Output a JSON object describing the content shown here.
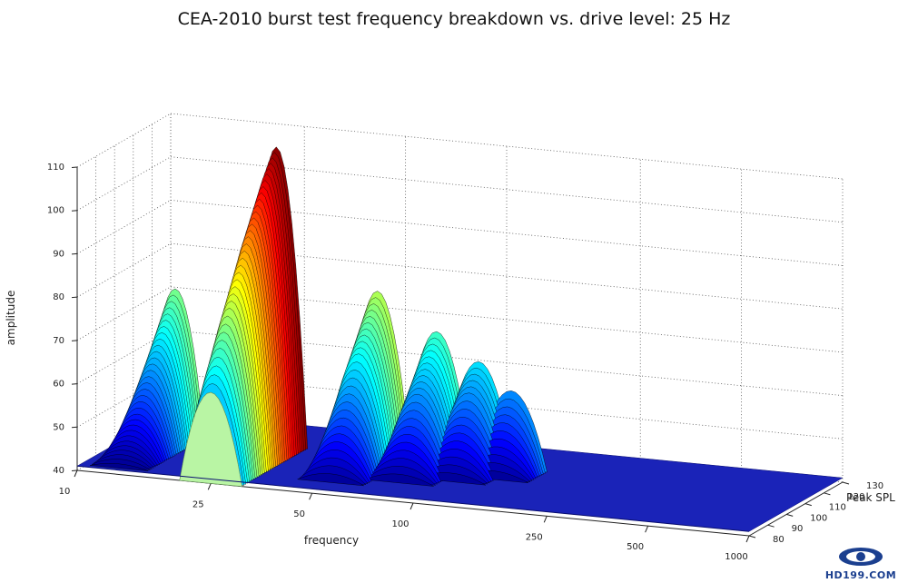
{
  "chart_data": {
    "type": "surface",
    "title": "CEA-2010 burst test frequency breakdown vs. drive level: 25 Hz",
    "xlabel": "frequency",
    "ylabel": "Peak SPL",
    "zlabel": "amplitude",
    "x_ticks": [
      "10",
      "25",
      "50",
      "100",
      "250",
      "500",
      "1000"
    ],
    "y_ticks": [
      "80",
      "90",
      "100",
      "110",
      "120",
      "130"
    ],
    "z_ticks": [
      "40",
      "50",
      "60",
      "70",
      "80",
      "90",
      "100",
      "110"
    ],
    "x_range": [
      10,
      1000
    ],
    "y_range": [
      80,
      130
    ],
    "z_range": [
      40,
      110
    ],
    "x_scale": "log",
    "grid": true,
    "colormap": "jet",
    "series": [
      {
        "x": 25,
        "y_values": [
          80,
          85,
          90,
          95,
          100,
          105,
          110,
          115
        ],
        "z_values": [
          61,
          70,
          78,
          85,
          92,
          98,
          104,
          109
        ]
      },
      {
        "x": 12.5,
        "y_values": [
          85,
          90,
          95,
          100,
          105,
          110,
          115
        ],
        "z_values": [
          41,
          45,
          50,
          56,
          62,
          68,
          74
        ]
      },
      {
        "x": 50,
        "y_values": [
          90,
          95,
          100,
          105,
          110,
          115
        ],
        "z_values": [
          42,
          50,
          58,
          66,
          72,
          78
        ]
      },
      {
        "x": 75,
        "y_values": [
          95,
          100,
          105,
          110,
          115
        ],
        "z_values": [
          42,
          50,
          58,
          64,
          70
        ]
      },
      {
        "x": 100,
        "y_values": [
          100,
          105,
          110,
          115
        ],
        "z_values": [
          42,
          50,
          58,
          64
        ]
      },
      {
        "x": 125,
        "y_values": [
          105,
          110,
          115
        ],
        "z_values": [
          42,
          50,
          58
        ]
      }
    ]
  },
  "logo": {
    "text": "HD199.COM"
  }
}
